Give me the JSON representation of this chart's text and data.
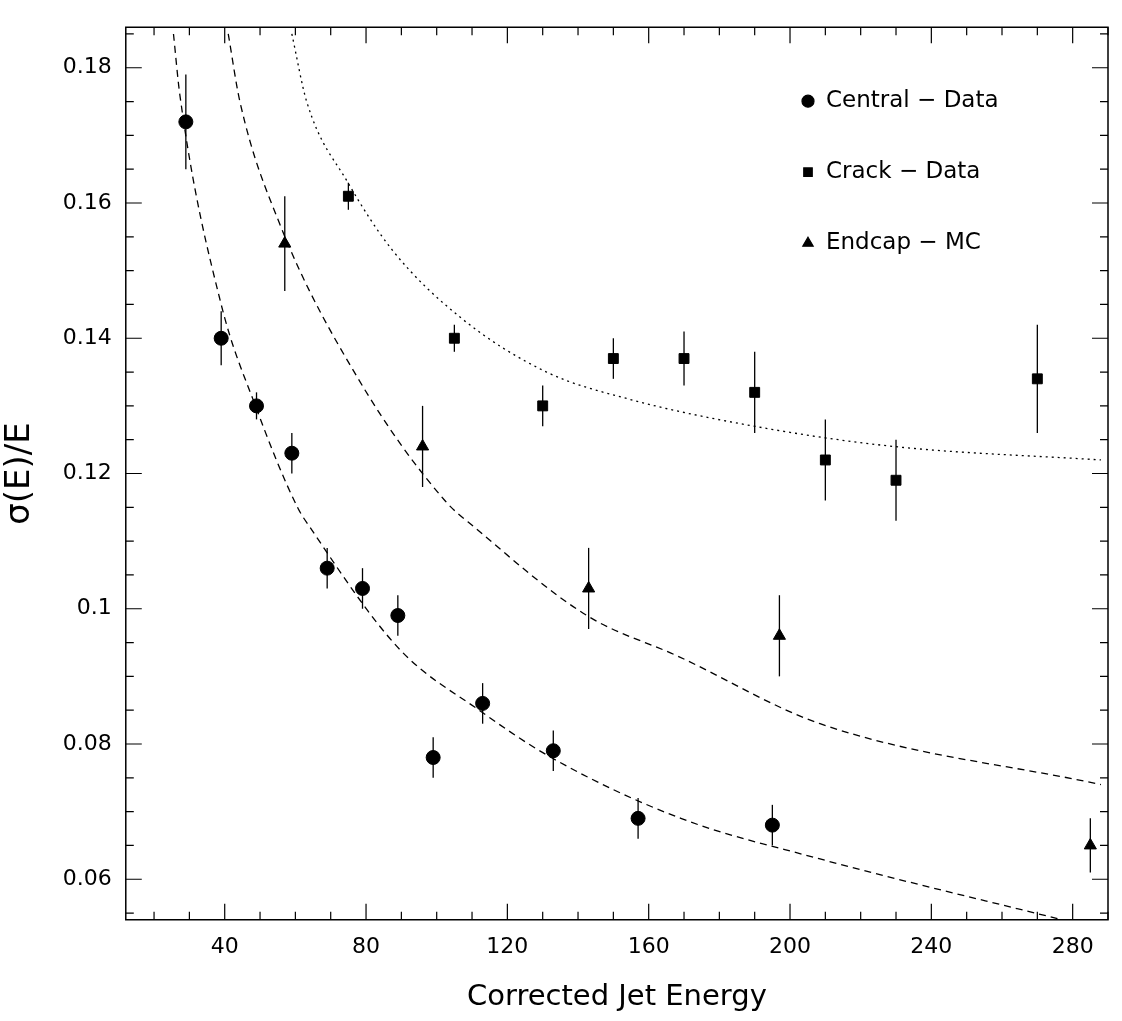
{
  "chart_data": {
    "type": "scatter",
    "xlabel": "Corrected Jet Energy",
    "ylabel": "σ(E)/E",
    "xlim": [
      12,
      290
    ],
    "ylim": [
      0.054,
      0.186
    ],
    "xticks": [
      {
        "value": 20,
        "label": null
      },
      {
        "value": 30,
        "label": null
      },
      40,
      {
        "value": 50,
        "label": null
      },
      {
        "value": 60,
        "label": null
      },
      {
        "value": 70,
        "label": null
      },
      80,
      {
        "value": 90,
        "label": null
      },
      {
        "value": 100,
        "label": null
      },
      {
        "value": 110,
        "label": null
      },
      120,
      {
        "value": 130,
        "label": null
      },
      {
        "value": 140,
        "label": null
      },
      {
        "value": 150,
        "label": null
      },
      160,
      {
        "value": 170,
        "label": null
      },
      {
        "value": 180,
        "label": null
      },
      {
        "value": 190,
        "label": null
      },
      200,
      {
        "value": 210,
        "label": null
      },
      {
        "value": 220,
        "label": null
      },
      {
        "value": 230,
        "label": null
      },
      240,
      {
        "value": 250,
        "label": null
      },
      {
        "value": 260,
        "label": null
      },
      {
        "value": 270,
        "label": null
      },
      280,
      {
        "value": 290,
        "label": null
      }
    ],
    "yticks": [
      {
        "value": 0.055,
        "label": null
      },
      0.06,
      {
        "value": 0.065,
        "label": null
      },
      {
        "value": 0.07,
        "label": null
      },
      {
        "value": 0.075,
        "label": null
      },
      0.08,
      {
        "value": 0.085,
        "label": null
      },
      {
        "value": 0.09,
        "label": null
      },
      {
        "value": 0.095,
        "label": null
      },
      {
        "value": 0.1,
        "label": "0.1"
      },
      {
        "value": 0.105,
        "label": null
      },
      {
        "value": 0.11,
        "label": null
      },
      {
        "value": 0.115,
        "label": null
      },
      0.12,
      {
        "value": 0.125,
        "label": null
      },
      {
        "value": 0.13,
        "label": null
      },
      {
        "value": 0.135,
        "label": null
      },
      0.14,
      {
        "value": 0.145,
        "label": null
      },
      {
        "value": 0.15,
        "label": null
      },
      {
        "value": 0.155,
        "label": null
      },
      0.16,
      {
        "value": 0.165,
        "label": null
      },
      {
        "value": 0.17,
        "label": null
      },
      {
        "value": 0.175,
        "label": null
      },
      0.18,
      {
        "value": 0.185,
        "label": null
      }
    ],
    "legend": "top right",
    "series": [
      {
        "name": "Central − Data",
        "type": "scatter",
        "marker": "circle",
        "color": "#000000",
        "x": [
          29,
          39,
          49,
          59,
          69,
          79,
          89,
          99,
          113,
          133,
          157,
          195
        ],
        "values": [
          0.172,
          0.14,
          0.13,
          0.123,
          0.106,
          0.103,
          0.099,
          0.078,
          0.086,
          0.079,
          0.069,
          0.068
        ],
        "errors": [
          0.007,
          0.004,
          0.002,
          0.003,
          0.003,
          0.003,
          0.003,
          0.003,
          0.003,
          0.003,
          0.003,
          0.003
        ]
      },
      {
        "name": "Crack − Data",
        "type": "scatter",
        "marker": "square",
        "color": "#000000",
        "x": [
          75,
          105,
          130,
          150,
          170,
          190,
          210,
          230,
          270
        ],
        "values": [
          0.161,
          0.14,
          0.13,
          0.137,
          0.137,
          0.132,
          0.122,
          0.119,
          0.134
        ],
        "errors": [
          0.002,
          0.002,
          0.003,
          0.003,
          0.004,
          0.006,
          0.006,
          0.006,
          0.008
        ]
      },
      {
        "name": "Endcap − MC",
        "type": "scatter",
        "marker": "triangle",
        "color": "#000000",
        "x": [
          57,
          96,
          143,
          197,
          285
        ],
        "values": [
          0.154,
          0.124,
          0.103,
          0.096,
          0.065
        ],
        "errors": [
          0.007,
          0.006,
          0.006,
          0.006,
          0.004
        ]
      },
      {
        "type": "line",
        "line_style": "dashed",
        "color": "#000000",
        "x": [
          25.5,
          27.3,
          39,
          48.7,
          60.6,
          64.2,
          89.5,
          112,
          132.4,
          169.1,
          208.5,
          277
        ],
        "values": [
          0.185,
          0.176,
          0.145,
          0.13,
          0.115,
          0.112,
          0.094,
          0.085,
          0.078,
          0.069,
          0.063,
          0.054
        ]
      },
      {
        "type": "line",
        "line_style": "dashed",
        "color": "#000000",
        "x": [
          41,
          44.3,
          55.5,
          77.8,
          102.3,
          110.8,
          142.5,
          168.2,
          208.5,
          288
        ],
        "values": [
          0.185,
          0.175,
          0.157,
          0.134,
          0.116,
          0.112,
          0.099,
          0.093,
          0.083,
          0.074
        ]
      },
      {
        "type": "line",
        "line_style": "dotted",
        "color": "#000000",
        "x": [
          59,
          63.2,
          74.9,
          87.5,
          106.9,
          131.1,
          154.4,
          189.8,
          229.3,
          288
        ],
        "values": [
          0.185,
          0.175,
          0.163,
          0.153,
          0.143,
          0.135,
          0.131,
          0.127,
          0.124,
          0.122
        ]
      }
    ]
  }
}
